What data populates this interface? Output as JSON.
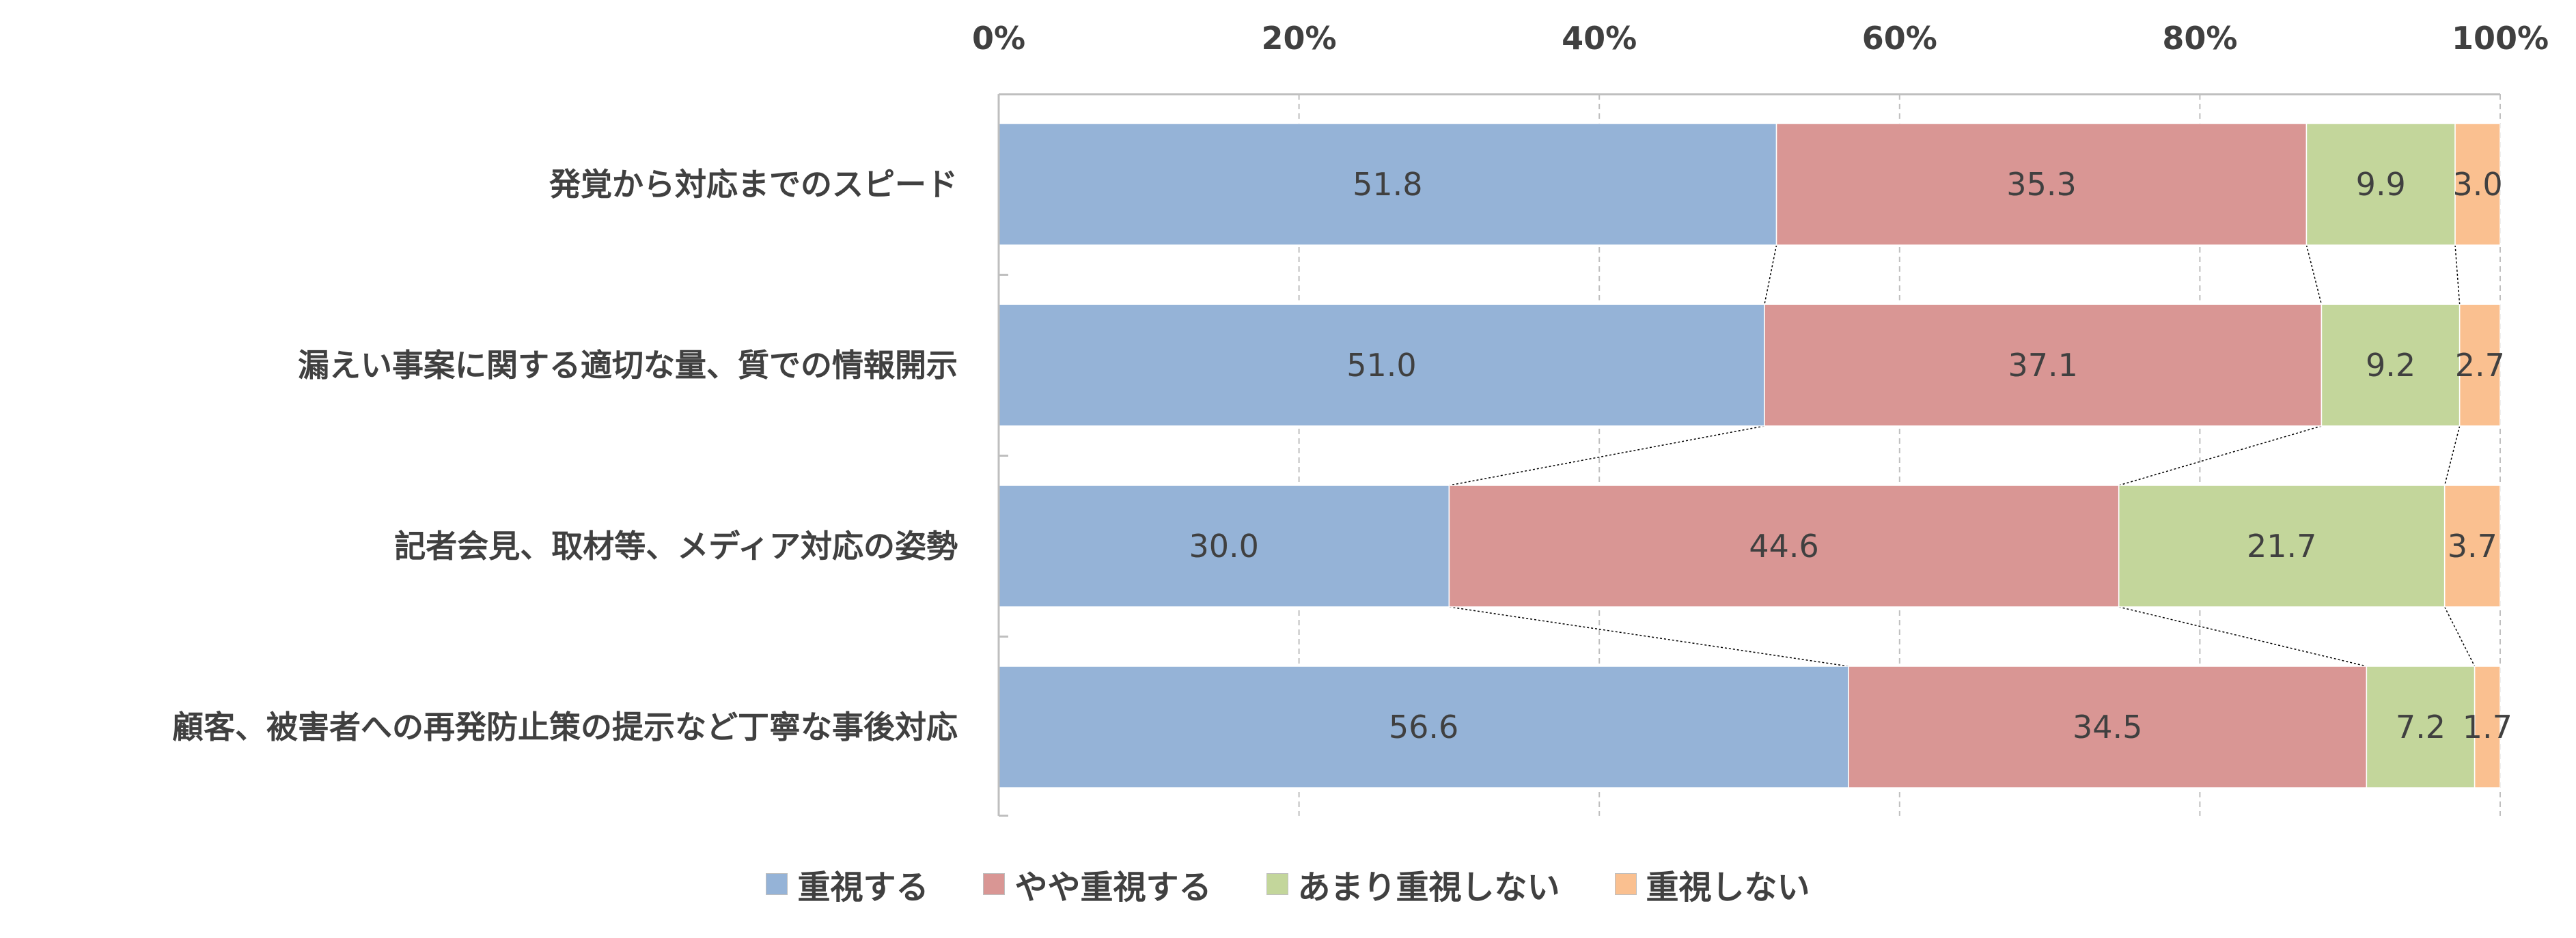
{
  "chart_data": {
    "type": "bar",
    "orientation": "horizontal",
    "stacked": "percent",
    "categories": [
      "発覚から対応までのスピード",
      "漏えい事案に関する適切な量、質での情報開示",
      "記者会見、取材等、メディア対応の姿勢",
      "顧客、被害者への再発防止策の提示など丁寧な事後対応"
    ],
    "series": [
      {
        "name": "重視する",
        "values": [
          51.8,
          51.0,
          30.0,
          56.6
        ],
        "color": "#95b3d7"
      },
      {
        "name": "やや重視する",
        "values": [
          35.3,
          37.1,
          44.6,
          34.5
        ],
        "color": "#d99694"
      },
      {
        "name": "あまり重視しない",
        "values": [
          9.9,
          9.2,
          21.7,
          7.2
        ],
        "color": "#c3d69b"
      },
      {
        "name": "重視しない",
        "values": [
          3.0,
          2.7,
          3.7,
          1.7
        ],
        "color": "#fac090"
      }
    ],
    "data_labels": [
      [
        "51.8",
        "51.0",
        "30.0",
        "56.6"
      ],
      [
        "35.3",
        "37.1",
        "44.6",
        "34.5"
      ],
      [
        "9.9",
        "9.2",
        "21.7",
        "7.2"
      ],
      [
        "3.0",
        "2.7",
        "3.7",
        "1.7"
      ]
    ],
    "xlim": [
      0,
      100
    ],
    "xticks": [
      "0%",
      "20%",
      "40%",
      "60%",
      "80%",
      "100%"
    ],
    "xaxis_position": "top",
    "grid": true,
    "series_lines": true,
    "legend": "bottom"
  }
}
